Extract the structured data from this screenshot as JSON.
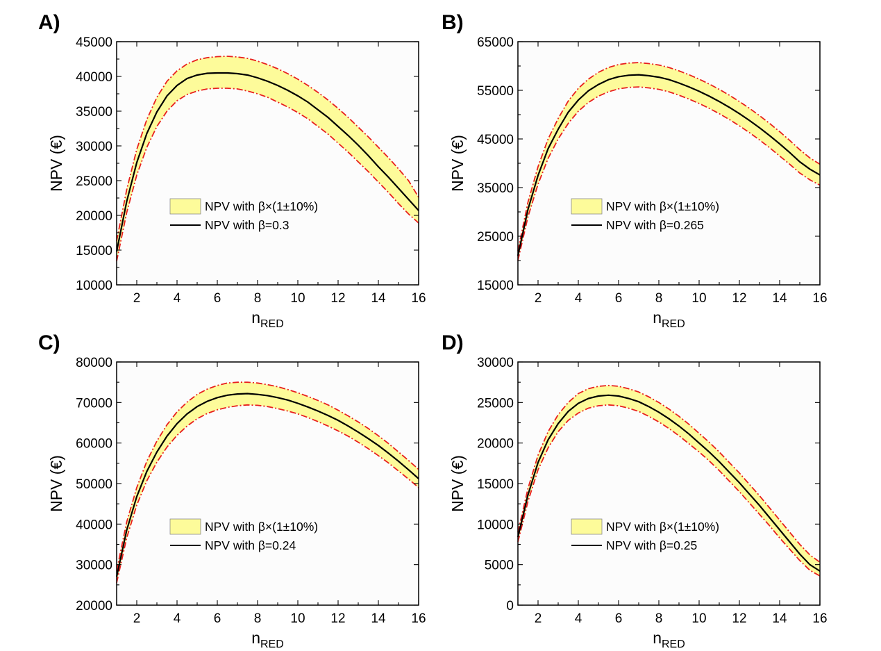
{
  "colors": {
    "band_fill": "#fdfb9a",
    "band_edge": "#e8201e",
    "central_line": "#000000",
    "plot_background": "#fcfcfc"
  },
  "chart_data": [
    {
      "panel": "A)",
      "type": "line",
      "xlabel_main": "n",
      "xlabel_sub": "RED",
      "ylabel": "NPV (€)",
      "xlim": [
        1,
        16
      ],
      "ylim": [
        10000,
        45000
      ],
      "xticks": [
        "2",
        "4",
        "6",
        "8",
        "10",
        "12",
        "14",
        "16"
      ],
      "yticks": [
        "10000",
        "15000",
        "20000",
        "25000",
        "30000",
        "35000",
        "40000",
        "45000"
      ],
      "grid": false,
      "legend": {
        "position": "lower-center",
        "band_label": "NPV with β×(1±10%)",
        "line_label": "NPV with β=0.3"
      },
      "x": [
        1,
        1.5,
        2,
        2.5,
        3,
        3.5,
        4,
        4.5,
        5,
        5.5,
        6,
        6.5,
        7,
        7.5,
        8,
        8.5,
        9,
        9.5,
        10,
        10.5,
        11,
        11.5,
        12,
        12.5,
        13,
        13.5,
        14,
        14.5,
        15,
        15.5,
        16
      ],
      "series": [
        {
          "name": "NPV with β=0.3",
          "role": "central",
          "values": [
            14800,
            22000,
            27600,
            31800,
            34900,
            37200,
            38700,
            39700,
            40200,
            40450,
            40500,
            40500,
            40400,
            40200,
            39800,
            39300,
            38700,
            38000,
            37200,
            36300,
            35200,
            34100,
            32800,
            31500,
            30100,
            28600,
            27000,
            25500,
            23900,
            22300,
            20700
          ]
        },
        {
          "role": "upper",
          "values": [
            16300,
            23700,
            29500,
            33800,
            37000,
            39300,
            40800,
            41800,
            42400,
            42700,
            42850,
            42900,
            42800,
            42600,
            42200,
            41700,
            41100,
            40400,
            39600,
            38700,
            37700,
            36600,
            35400,
            34100,
            32700,
            31300,
            29800,
            28300,
            26700,
            25000,
            22600
          ]
        },
        {
          "role": "lower",
          "values": [
            13400,
            20400,
            25800,
            29800,
            32800,
            35000,
            36500,
            37400,
            37900,
            38200,
            38300,
            38300,
            38200,
            37900,
            37500,
            37000,
            36300,
            35600,
            34800,
            33900,
            32800,
            31700,
            30400,
            29100,
            27700,
            26300,
            24800,
            23300,
            21700,
            20200,
            18900
          ]
        }
      ]
    },
    {
      "panel": "B)",
      "type": "line",
      "xlabel_main": "n",
      "xlabel_sub": "RED",
      "ylabel": "NPV (€)",
      "xlim": [
        1,
        16
      ],
      "ylim": [
        15000,
        65000
      ],
      "xticks": [
        "2",
        "4",
        "6",
        "8",
        "10",
        "12",
        "14",
        "16"
      ],
      "yticks": [
        "15000",
        "25000",
        "35000",
        "45000",
        "55000",
        "65000"
      ],
      "grid": false,
      "legend": {
        "position": "lower-center",
        "band_label": "NPV with β×(1±10%)",
        "line_label": "NPV with β=0.265"
      },
      "x": [
        1,
        1.5,
        2,
        2.5,
        3,
        3.5,
        4,
        4.5,
        5,
        5.5,
        6,
        6.5,
        7,
        7.5,
        8,
        8.5,
        9,
        9.5,
        10,
        10.5,
        11,
        11.5,
        12,
        12.5,
        13,
        13.5,
        14,
        14.5,
        15,
        15.5,
        16
      ],
      "series": [
        {
          "name": "NPV with β=0.265",
          "role": "central",
          "values": [
            21000,
            30500,
            37500,
            43000,
            47000,
            50500,
            53000,
            54900,
            56200,
            57200,
            57800,
            58100,
            58200,
            58000,
            57700,
            57200,
            56500,
            55700,
            54800,
            53800,
            52700,
            51500,
            50200,
            48800,
            47300,
            45700,
            44000,
            42200,
            40300,
            38800,
            37600
          ]
        },
        {
          "role": "upper",
          "values": [
            22000,
            32000,
            39300,
            45000,
            49200,
            52800,
            55400,
            57300,
            58700,
            59700,
            60300,
            60600,
            60700,
            60500,
            60200,
            59700,
            59000,
            58200,
            57300,
            56300,
            55200,
            54000,
            52700,
            51300,
            49800,
            48200,
            46500,
            44700,
            42800,
            41100,
            39800
          ]
        },
        {
          "role": "lower",
          "values": [
            20000,
            29000,
            35700,
            41000,
            45000,
            48200,
            50700,
            52500,
            53800,
            54700,
            55300,
            55600,
            55700,
            55500,
            55200,
            54700,
            54000,
            53200,
            52300,
            51300,
            50200,
            49000,
            47700,
            46300,
            44800,
            43200,
            41500,
            39800,
            38000,
            36600,
            35500
          ]
        }
      ]
    },
    {
      "panel": "C)",
      "type": "line",
      "xlabel_main": "n",
      "xlabel_sub": "RED",
      "ylabel": "NPV (€)",
      "xlim": [
        1,
        16
      ],
      "ylim": [
        20000,
        80000
      ],
      "xticks": [
        "2",
        "4",
        "6",
        "8",
        "10",
        "12",
        "14",
        "16"
      ],
      "yticks": [
        "20000",
        "30000",
        "40000",
        "50000",
        "60000",
        "70000",
        "80000"
      ],
      "grid": false,
      "legend": {
        "position": "lower-center",
        "band_label": "NPV with β×(1±10%)",
        "line_label": "NPV with β=0.24"
      },
      "x": [
        1,
        1.5,
        2,
        2.5,
        3,
        3.5,
        4,
        4.5,
        5,
        5.5,
        6,
        6.5,
        7,
        7.5,
        8,
        8.5,
        9,
        9.5,
        10,
        10.5,
        11,
        11.5,
        12,
        12.5,
        13,
        13.5,
        14,
        14.5,
        15,
        15.5,
        16
      ],
      "series": [
        {
          "name": "NPV with β=0.24",
          "role": "central",
          "values": [
            27000,
            38500,
            46800,
            53000,
            57800,
            61700,
            64800,
            67200,
            69000,
            70300,
            71200,
            71800,
            72100,
            72200,
            72000,
            71700,
            71200,
            70600,
            69800,
            68900,
            67900,
            66800,
            65600,
            64200,
            62700,
            61100,
            59400,
            57500,
            55500,
            53400,
            51200
          ]
        },
        {
          "role": "upper",
          "values": [
            28500,
            40500,
            49000,
            55500,
            60500,
            64500,
            67700,
            70100,
            72000,
            73300,
            74200,
            74800,
            75000,
            75000,
            74800,
            74400,
            73900,
            73200,
            72400,
            71500,
            70500,
            69400,
            68100,
            66700,
            65200,
            63600,
            61800,
            59900,
            57800,
            55700,
            53500
          ]
        },
        {
          "role": "lower",
          "values": [
            25500,
            36600,
            44700,
            50700,
            55300,
            59000,
            61900,
            64200,
            66000,
            67300,
            68200,
            68800,
            69200,
            69400,
            69300,
            69000,
            68500,
            67900,
            67200,
            66300,
            65300,
            64200,
            63000,
            61700,
            60200,
            58600,
            56900,
            55100,
            53100,
            51100,
            49000
          ]
        }
      ]
    },
    {
      "panel": "D)",
      "type": "line",
      "xlabel_main": "n",
      "xlabel_sub": "RED",
      "ylabel": "NPV (€)",
      "xlim": [
        1,
        16
      ],
      "ylim": [
        0,
        30000
      ],
      "xticks": [
        "2",
        "4",
        "6",
        "8",
        "10",
        "12",
        "14",
        "16"
      ],
      "yticks": [
        "0",
        "5000",
        "10000",
        "15000",
        "20000",
        "25000",
        "30000"
      ],
      "grid": false,
      "legend": {
        "position": "lower-center",
        "band_label": "NPV with β×(1±10%)",
        "line_label": "NPV with β=0.25"
      },
      "x": [
        1,
        1.5,
        2,
        2.5,
        3,
        3.5,
        4,
        4.5,
        5,
        5.5,
        6,
        6.5,
        7,
        7.5,
        8,
        8.5,
        9,
        9.5,
        10,
        10.5,
        11,
        11.5,
        12,
        12.5,
        13,
        13.5,
        14,
        14.5,
        15,
        15.5,
        16
      ],
      "series": [
        {
          "name": "NPV with β=0.25",
          "role": "central",
          "values": [
            8400,
            13600,
            17600,
            20400,
            22400,
            23900,
            24900,
            25500,
            25800,
            25900,
            25800,
            25500,
            25100,
            24500,
            23800,
            23000,
            22100,
            21100,
            20000,
            18900,
            17700,
            16400,
            15100,
            13700,
            12300,
            10800,
            9300,
            7800,
            6300,
            5000,
            4200
          ]
        },
        {
          "role": "upper",
          "values": [
            9000,
            14400,
            18500,
            21400,
            23500,
            25000,
            26100,
            26700,
            27000,
            27100,
            27000,
            26700,
            26300,
            25700,
            25000,
            24200,
            23300,
            22300,
            21200,
            20100,
            18900,
            17600,
            16300,
            14900,
            13500,
            12000,
            10500,
            9000,
            7500,
            6200,
            5300
          ]
        },
        {
          "role": "lower",
          "values": [
            7800,
            12800,
            16700,
            19400,
            21400,
            22800,
            23700,
            24300,
            24600,
            24700,
            24600,
            24300,
            23900,
            23300,
            22600,
            21800,
            20900,
            19900,
            18900,
            17800,
            16600,
            15300,
            14000,
            12600,
            11200,
            9800,
            8300,
            6900,
            5500,
            4300,
            3600
          ]
        }
      ]
    }
  ]
}
